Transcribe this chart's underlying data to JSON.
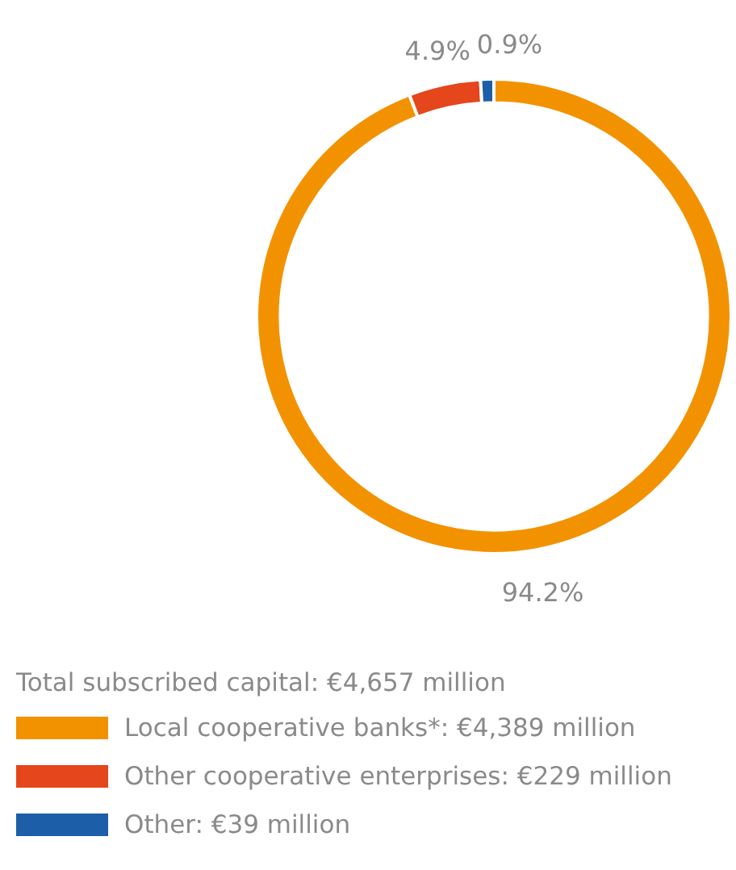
{
  "chart_data": {
    "type": "donut",
    "categories": [
      "Local cooperative banks*: €4,389 million",
      "Other cooperative enterprises: €229 million",
      "Other: €39 million"
    ],
    "values": [
      94.2,
      4.9,
      0.9
    ],
    "colors": [
      "#f39200",
      "#e5461b",
      "#1d5ea8"
    ],
    "value_labels": [
      "94.2%",
      "4.9%",
      "0.9%"
    ],
    "legend": "bottom",
    "legend_title": "Total subscribed capital: €4,657 million"
  }
}
